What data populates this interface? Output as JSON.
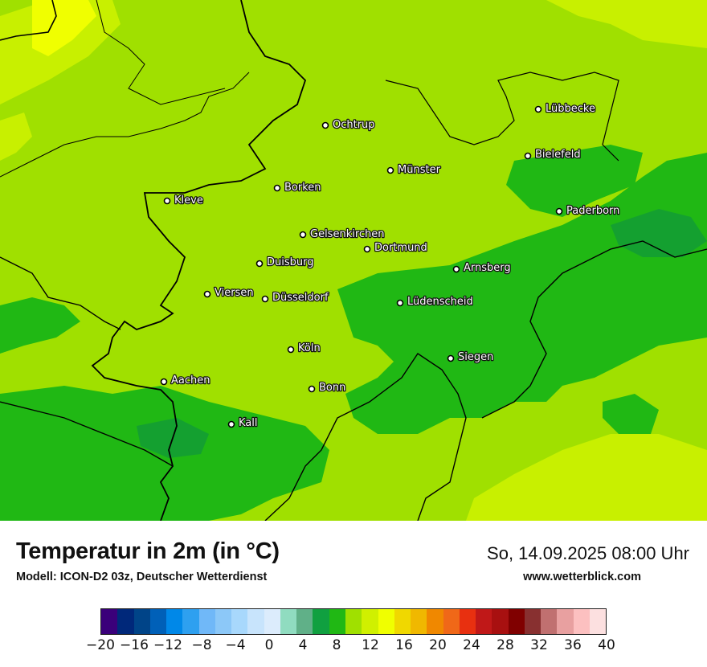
{
  "map": {
    "cities": [
      {
        "name": "Ochtrup"
      },
      {
        "name": "Lübbecke"
      },
      {
        "name": "Bielefeld"
      },
      {
        "name": "Münster"
      },
      {
        "name": "Borken"
      },
      {
        "name": "Kleve"
      },
      {
        "name": "Paderborn"
      },
      {
        "name": "Gelsenkirchen"
      },
      {
        "name": "Dortmund"
      },
      {
        "name": "Duisburg"
      },
      {
        "name": "Arnsberg"
      },
      {
        "name": "Viersen"
      },
      {
        "name": "Düsseldorf"
      },
      {
        "name": "Lüdenscheid"
      },
      {
        "name": "Köln"
      },
      {
        "name": "Siegen"
      },
      {
        "name": "Aachen"
      },
      {
        "name": "Bonn"
      },
      {
        "name": "Kall"
      }
    ],
    "colors": {
      "t12": "#a0e000",
      "t14": "#c8f000",
      "t16": "#f0ff00",
      "t10": "#20b814",
      "t8": "#14a030",
      "border": "#000000"
    }
  },
  "footer": {
    "title": "Temperatur in 2m (in °C)",
    "subtitle": "Modell: ICON-D2 03z, Deutscher Wetterdienst",
    "datetime": "So, 14.09.2025 08:00 Uhr",
    "website": "www.wetterblick.com"
  },
  "legend": {
    "colors": [
      "#3a007a",
      "#00287a",
      "#004488",
      "#0060b8",
      "#0088e8",
      "#2ea0f0",
      "#70b8f8",
      "#8cc8f8",
      "#a8d8fc",
      "#c8e4fc",
      "#dcecfc",
      "#90dcc0",
      "#60b088",
      "#10a040",
      "#20b814",
      "#a0e000",
      "#d0f000",
      "#f0ff00",
      "#f0d800",
      "#f0b800",
      "#f08800",
      "#f06818",
      "#e83010",
      "#c01818",
      "#a81010",
      "#800000",
      "#883030",
      "#c07070",
      "#e8a0a0",
      "#fcc0c0",
      "#fce0e0"
    ],
    "ticks": [
      "−20",
      "−16",
      "−12",
      "−8",
      "−4",
      "0",
      "4",
      "8",
      "12",
      "16",
      "20",
      "24",
      "28",
      "32",
      "36",
      "40"
    ]
  }
}
